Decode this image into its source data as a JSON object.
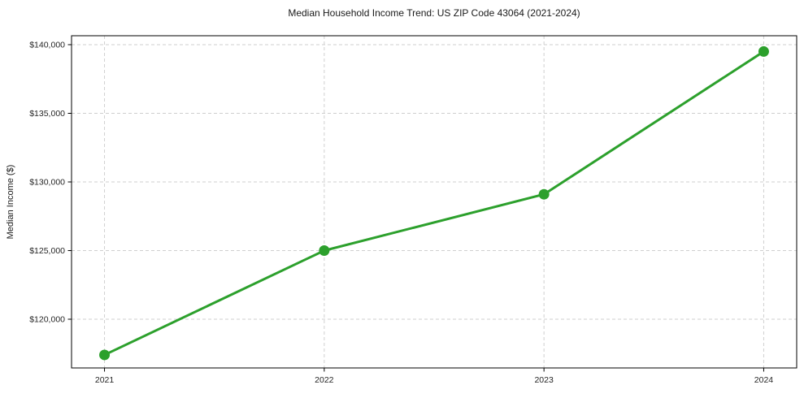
{
  "chart_data": {
    "type": "line",
    "title": "Median Household Income Trend: US ZIP Code 43064 (2021-2024)",
    "xlabel": "",
    "ylabel": "Median Income ($)",
    "x": [
      2021,
      2022,
      2023,
      2024
    ],
    "x_tick_labels": [
      "2021",
      "2022",
      "2023",
      "2024"
    ],
    "series": [
      {
        "name": "Median Household Income",
        "values": [
          117400,
          125000,
          129100,
          139500
        ]
      }
    ],
    "y_ticks": [
      120000,
      125000,
      130000,
      135000,
      140000
    ],
    "y_tick_labels": [
      "$120,000",
      "$125,000",
      "$130,000",
      "$135,000",
      "$140,000"
    ],
    "xlim": [
      2020.85,
      2024.15
    ],
    "ylim": [
      116450,
      140650
    ],
    "grid": true,
    "legend": "none",
    "colors": {
      "line": "#2ca02c",
      "marker": "#2ca02c",
      "grid": "#cfcfcf",
      "spine": "#000000",
      "tick": "#262626",
      "background": "#ffffff"
    }
  }
}
